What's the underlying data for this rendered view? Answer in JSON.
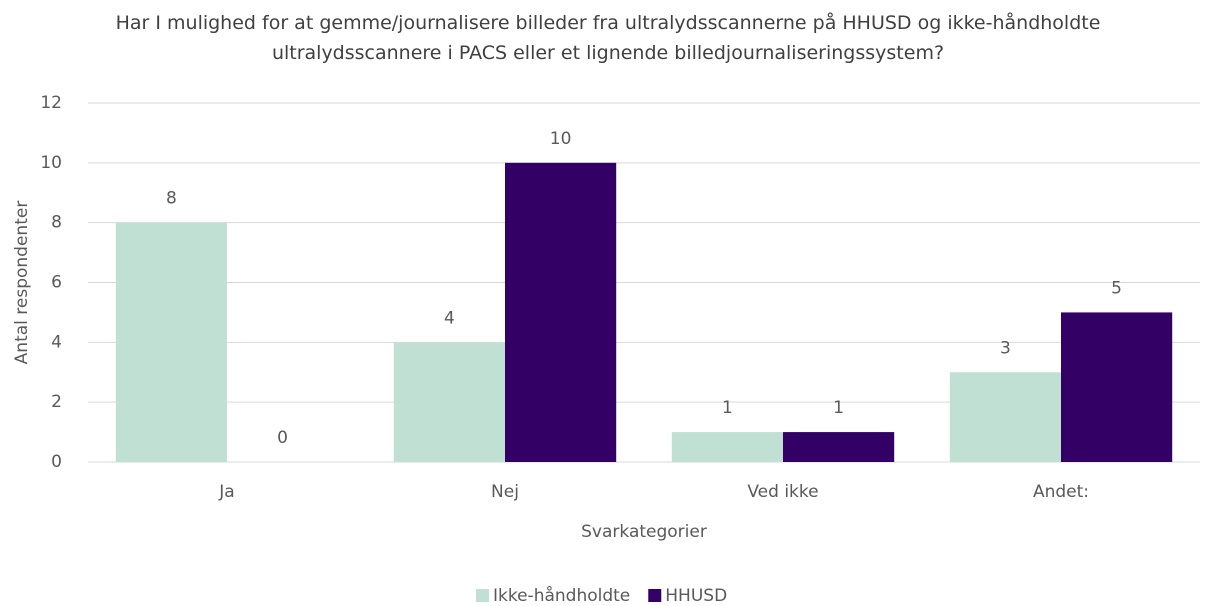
{
  "chart_data": {
    "type": "bar",
    "title": "Har I mulighed for at gemme/journalisere billeder fra ultralydsscannerne på HHUSD og ikke-håndholdte ultralydsscannere i PACS eller et lignende billedjournaliseringssystem?",
    "categories": [
      "Ja",
      "Nej",
      "Ved ikke",
      "Andet:"
    ],
    "series": [
      {
        "name": "Ikke-håndholdte",
        "color": "#c1e0d4",
        "values": [
          8,
          4,
          1,
          3
        ]
      },
      {
        "name": "HHUSD",
        "color": "#330066",
        "values": [
          0,
          10,
          1,
          5
        ]
      }
    ],
    "x_label": "Svarkategorier",
    "y_label": "Antal respondenter",
    "ylim": [
      0,
      12
    ],
    "yticks": [
      0,
      2,
      4,
      6,
      8,
      10,
      12
    ],
    "grid": true,
    "legend": "bottom"
  }
}
